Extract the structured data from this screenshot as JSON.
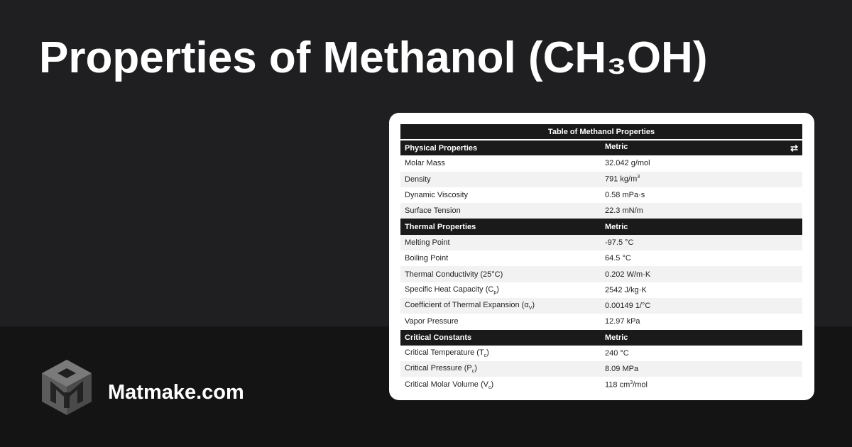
{
  "page_title": "Properties of Methanol (CH₃OH)",
  "brand": "Matmake.com",
  "table": {
    "caption": "Table of Methanol Properties",
    "swap_icon": "swap-arrows-icon",
    "groups": [
      {
        "header": "Physical Properties",
        "unit_header": "Metric",
        "rows": [
          {
            "name": "Molar Mass",
            "value": "32.042 g/mol"
          },
          {
            "name": "Density",
            "value": "791 kg/m",
            "value_sup": "3"
          },
          {
            "name": "Dynamic Viscosity",
            "value": "0.58 mPa·s"
          },
          {
            "name": "Surface Tension",
            "value": "22.3 mN/m"
          }
        ]
      },
      {
        "header": "Thermal Properties",
        "unit_header": "Metric",
        "rows": [
          {
            "name": "Melting Point",
            "value": "-97.5 °C"
          },
          {
            "name": "Boiling Point",
            "value": "64.5 °C"
          },
          {
            "name": "Thermal Conductivity (25°C)",
            "value": "0.202 W/m·K"
          },
          {
            "name": "Specific Heat Capacity (C",
            "name_sub": "p",
            "name_tail": ")",
            "value": "2542 J/kg·K"
          },
          {
            "name": "Coefficient of Thermal Expansion (α",
            "name_sub": "V",
            "name_tail": ")",
            "value": "0.00149 1/°C"
          },
          {
            "name": "Vapor Pressure",
            "value": "12.97 kPa"
          }
        ]
      },
      {
        "header": "Critical Constants",
        "unit_header": "Metric",
        "rows": [
          {
            "name": "Critical Temperature (T",
            "name_sub": "c",
            "name_tail": ")",
            "value": "240 °C"
          },
          {
            "name": "Critical Pressure (P",
            "name_sub": "c",
            "name_tail": ")",
            "value": "8.09 MPa"
          },
          {
            "name": "Critical Molar Volume (V",
            "name_sub": "c",
            "name_tail": ")",
            "value": "118 cm",
            "value_sup": "3",
            "value_tail": "/mol"
          }
        ]
      }
    ]
  }
}
